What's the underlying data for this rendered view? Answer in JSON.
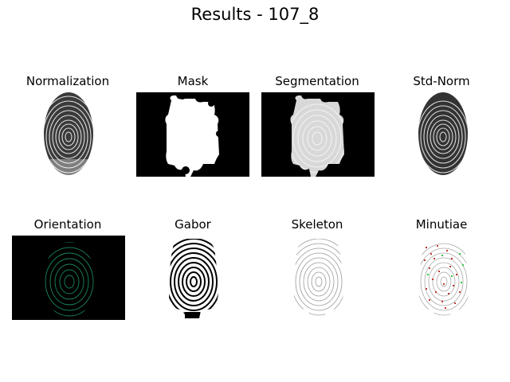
{
  "figure": {
    "title": "Results - 107_8"
  },
  "panels": [
    {
      "label": "Normalization"
    },
    {
      "label": "Mask"
    },
    {
      "label": "Segmentation"
    },
    {
      "label": "Std-Norm"
    },
    {
      "label": "Orientation"
    },
    {
      "label": "Gabor"
    },
    {
      "label": "Skeleton"
    },
    {
      "label": "Minutiae"
    }
  ],
  "colors": {
    "background": "#ffffff",
    "mask_fill": "#000000",
    "orientation_lines": "#1f9e6a",
    "minutia_termination": "#c0392b",
    "minutia_bifurcation": "#2ecc40"
  }
}
